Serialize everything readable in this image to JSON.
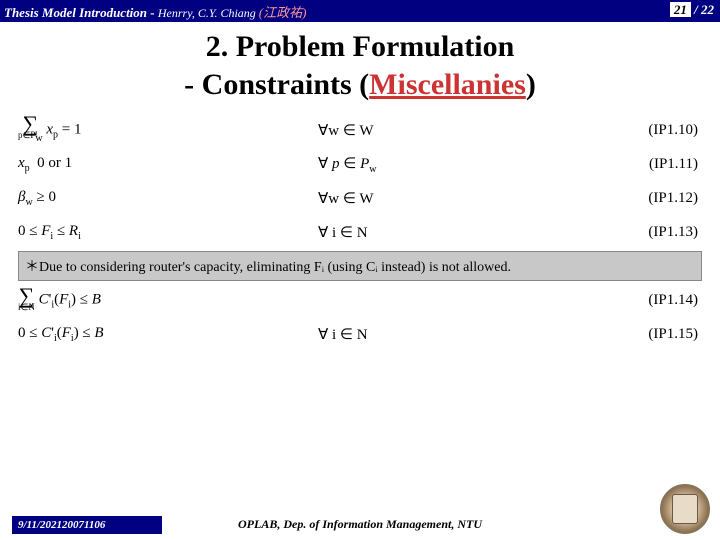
{
  "header": {
    "prefix": "Thesis Model Introduction",
    "dash": " - ",
    "author": "Henrry, C.Y. Chiang ",
    "cjk": "(江政祐)"
  },
  "page": {
    "current": "21",
    "total": " / 22"
  },
  "title": {
    "line1": "2. Problem Formulation",
    "line2a": "- Constraints (",
    "misc": "Miscellanies",
    "line2b": ")"
  },
  "rows": [
    {
      "left_html": "<span class='sum'><span class='sigma'>∑</span><span class='sub'>p∈P<sub>w</sub></span></span>&nbsp;<i>x</i><sub>p</sub> = 1",
      "mid": "∀w ∈ W",
      "right": "(IP1.10)"
    },
    {
      "left_html": "<i>x</i><sub>p</sub>&nbsp;&nbsp;0 or 1",
      "mid_html": "∀ <i>p</i> ∈ <i>P</i><sub>w</sub>",
      "right": "(IP1.11)"
    },
    {
      "left_html": "<i>β</i><sub>w</sub> ≥ 0",
      "mid": "∀w ∈ W",
      "right": "(IP1.12)"
    },
    {
      "left_html": "0 ≤ <i>F</i><sub>i</sub> ≤ <i>R</i><sub>i</sub>",
      "mid": "∀ i ∈ N",
      "right": "(IP1.13)"
    }
  ],
  "note": "＊Due to considering router's capacity, eliminating Fᵢ (using Cᵢ instead) is not allowed.",
  "rows2": [
    {
      "left_html": "<span class='sum'><span class='sigma'>∑</span><span class='sub'>i∈N</span></span>&nbsp;<i>C</i>'<sub>i</sub>(<i>F</i><sub>i</sub>) ≤ <i>B</i>",
      "mid": "",
      "right": "(IP1.14)"
    },
    {
      "left_html": "0 ≤ <i>C</i>'<sub>i</sub>(<i>F</i><sub>i</sub>) ≤ <i>B</i>",
      "mid": "∀ i ∈ N",
      "right": "(IP1.15)"
    }
  ],
  "footer": {
    "date": "9/11/202120071106",
    "center": "OPLAB, Dep. of Information Management, NTU"
  }
}
